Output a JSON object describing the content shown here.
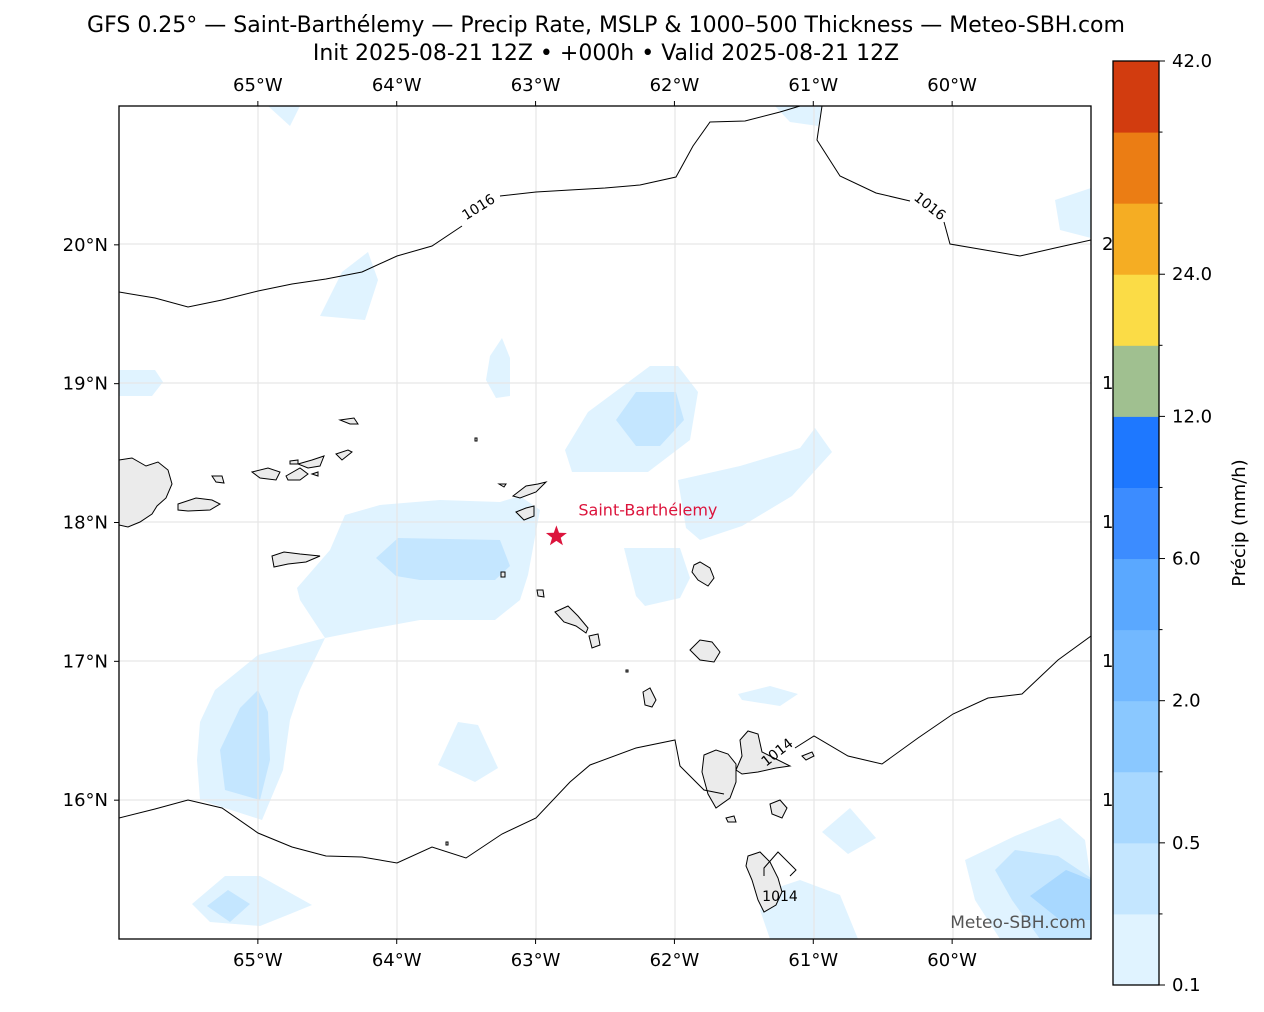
{
  "title": {
    "line1": "GFS 0.25° — Saint-Barthélemy — Precip Rate, MSLP & 1000–500 Thickness — Meteo-SBH.com",
    "line2": "Init 2025-08-21 12Z • +000h • Valid 2025-08-21 12Z"
  },
  "map": {
    "extent": {
      "lon": [
        -66.0,
        -59.0
      ],
      "lat": [
        15.0,
        21.0
      ]
    },
    "lon_ticks": [
      {
        "value": -65,
        "label": "65°W"
      },
      {
        "value": -64,
        "label": "64°W"
      },
      {
        "value": -63,
        "label": "63°W"
      },
      {
        "value": -62,
        "label": "62°W"
      },
      {
        "value": -61,
        "label": "61°W"
      },
      {
        "value": -60,
        "label": "60°W"
      }
    ],
    "lat_ticks": [
      {
        "value": 16,
        "label": "16°N"
      },
      {
        "value": 17,
        "label": "17°N"
      },
      {
        "value": 18,
        "label": "18°N"
      },
      {
        "value": 19,
        "label": "19°N"
      },
      {
        "value": 20,
        "label": "20°N"
      }
    ],
    "gridlines": true,
    "marker": {
      "name": "Saint-Barthélemy",
      "lon": -62.85,
      "lat": 17.9,
      "color": "#dc143c"
    },
    "isobar_labels": [
      "1016",
      "1016",
      "1014",
      "1014"
    ],
    "watermark": "Meteo-SBH.com",
    "colors": {
      "land": "#ebebeb",
      "coast": "#000000",
      "isobar": "#000000",
      "grid": "#e6e6e6"
    }
  },
  "colorbar": {
    "label": "Précip (mm/h)",
    "bands": [
      "#e0f3ff",
      "#c4e6ff",
      "#a8d8ff",
      "#8ac8ff",
      "#72b8ff",
      "#5aa8ff",
      "#3c8cff",
      "#1e78ff",
      "#a0c090",
      "#fbdc46",
      "#f5ad23",
      "#eb7d14",
      "#d23c0f"
    ],
    "tick_labels": [
      {
        "index": 0,
        "label": "0.1"
      },
      {
        "index": 1,
        "label": ""
      },
      {
        "index": 2,
        "label": "0.5"
      },
      {
        "index": 3,
        "label": ""
      },
      {
        "index": 4,
        "label": "2.0"
      },
      {
        "index": 5,
        "label": ""
      },
      {
        "index": 6,
        "label": "6.0"
      },
      {
        "index": 7,
        "label": ""
      },
      {
        "index": 8,
        "label": "12.0"
      },
      {
        "index": 9,
        "label": ""
      },
      {
        "index": 10,
        "label": "24.0"
      },
      {
        "index": 11,
        "label": ""
      },
      {
        "index": 12,
        "label": ""
      },
      {
        "index": 13,
        "label": "42.0"
      }
    ]
  }
}
